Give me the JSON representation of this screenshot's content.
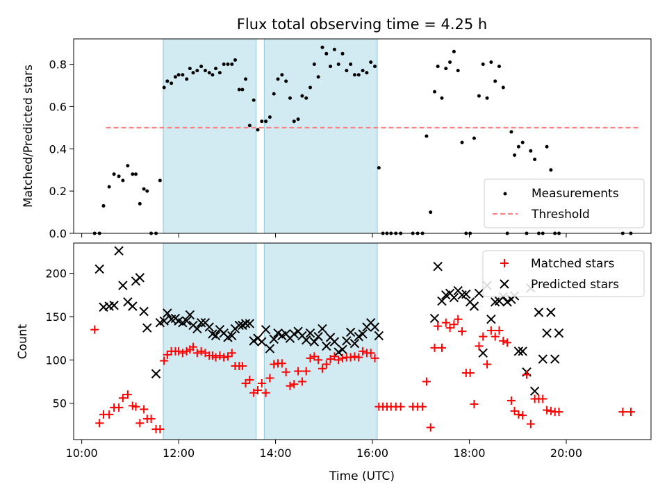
{
  "title": "Flux total observing time = 4.25 h",
  "colors": {
    "measurements": "#000000",
    "threshold": "#ff7f7f",
    "matched": "#ff0000",
    "predicted": "#000000",
    "shade": "#add8e6"
  },
  "chart_data": [
    {
      "type": "scatter",
      "ylabel": "Matched/Predicted stars",
      "xlim": [
        "09:50",
        "21:45"
      ],
      "ylim": [
        0,
        0.92
      ],
      "yticks": [
        0.0,
        0.2,
        0.4,
        0.6,
        0.8
      ],
      "ytick_labels": [
        "0.0",
        "0.2",
        "0.4",
        "0.6",
        "0.8"
      ],
      "legend": {
        "position": "lower right",
        "entries": [
          "Measurements",
          "Threshold"
        ]
      },
      "threshold": {
        "name": "Threshold",
        "value": 0.5,
        "x_range": [
          "10:30",
          "21:30"
        ]
      },
      "shaded_intervals": [
        [
          "11:41",
          "13:36"
        ],
        [
          "13:46",
          "16:06"
        ]
      ],
      "series": [
        {
          "name": "Measurements",
          "x": [
            "10:16",
            "10:22",
            "10:27",
            "10:34",
            "10:40",
            "10:46",
            "10:51",
            "10:57",
            "11:03",
            "11:07",
            "11:12",
            "11:17",
            "11:21",
            "11:26",
            "11:32",
            "11:37",
            "11:42",
            "11:46",
            "11:51",
            "11:56",
            "12:00",
            "12:05",
            "12:10",
            "12:14",
            "12:18",
            "12:23",
            "12:28",
            "12:33",
            "12:38",
            "12:42",
            "12:46",
            "12:51",
            "12:56",
            "13:01",
            "13:06",
            "13:10",
            "13:15",
            "13:19",
            "13:23",
            "13:28",
            "13:33",
            "13:38",
            "13:43",
            "13:48",
            "13:53",
            "13:58",
            "14:03",
            "14:08",
            "14:13",
            "14:18",
            "14:23",
            "14:28",
            "14:33",
            "14:38",
            "14:43",
            "14:48",
            "14:53",
            "14:58",
            "15:03",
            "15:08",
            "15:13",
            "15:18",
            "15:23",
            "15:28",
            "15:33",
            "15:38",
            "15:43",
            "15:48",
            "15:53",
            "15:58",
            "16:03",
            "16:08",
            "16:13",
            "16:18",
            "16:23",
            "16:29",
            "16:35",
            "16:50",
            "16:56",
            "17:02",
            "17:07",
            "17:12",
            "17:17",
            "17:21",
            "17:26",
            "17:31",
            "17:36",
            "17:41",
            "17:46",
            "17:51",
            "17:56",
            "18:01",
            "18:06",
            "18:12",
            "18:17",
            "18:22",
            "18:27",
            "18:32",
            "18:37",
            "18:42",
            "18:47",
            "18:52",
            "18:56",
            "19:01",
            "19:06",
            "19:11",
            "19:16",
            "19:21",
            "19:26",
            "19:31",
            "19:36",
            "19:41",
            "19:46",
            "19:51",
            "21:10",
            "21:20"
          ],
          "y": [
            0.0,
            0.0,
            0.13,
            0.22,
            0.28,
            0.27,
            0.25,
            0.32,
            0.28,
            0.28,
            0.14,
            0.21,
            0.2,
            0.0,
            0.0,
            0.25,
            0.69,
            0.72,
            0.71,
            0.74,
            0.75,
            0.75,
            0.73,
            0.78,
            0.76,
            0.77,
            0.79,
            0.77,
            0.76,
            0.75,
            0.78,
            0.76,
            0.8,
            0.8,
            0.8,
            0.82,
            0.68,
            0.68,
            0.73,
            0.51,
            0.63,
            0.49,
            0.53,
            0.53,
            0.55,
            0.66,
            0.73,
            0.75,
            0.72,
            0.64,
            0.53,
            0.54,
            0.65,
            0.64,
            0.69,
            0.8,
            0.74,
            0.88,
            0.85,
            0.79,
            0.87,
            0.8,
            0.85,
            0.77,
            0.8,
            0.75,
            0.75,
            0.77,
            0.76,
            0.81,
            0.79,
            0.31,
            0.0,
            0.0,
            0.0,
            0.0,
            0.0,
            0.0,
            0.0,
            0.0,
            0.46,
            0.1,
            0.67,
            0.79,
            0.64,
            0.78,
            0.81,
            0.86,
            0.77,
            0.43,
            0.0,
            0.0,
            0.45,
            0.65,
            0.8,
            0.64,
            0.81,
            0.72,
            0.79,
            0.69,
            0.0,
            0.48,
            0.37,
            0.41,
            0.43,
            0.0,
            0.39,
            0.35,
            0.0,
            0.0,
            0.41,
            0.3,
            0.0,
            0.0,
            0.0,
            0.0
          ]
        }
      ]
    },
    {
      "type": "scatter",
      "xlabel": "Time (UTC)",
      "ylabel": "Count",
      "xlim": [
        "09:50",
        "21:45"
      ],
      "ylim": [
        8,
        235
      ],
      "yticks": [
        50,
        100,
        150,
        200
      ],
      "ytick_labels": [
        "50",
        "100",
        "150",
        "200"
      ],
      "xticks": [
        "10:00",
        "12:00",
        "14:00",
        "16:00",
        "18:00",
        "20:00"
      ],
      "legend": {
        "position": "upper right",
        "entries": [
          "Matched stars",
          "Predicted stars"
        ]
      },
      "shaded_intervals": [
        [
          "11:41",
          "13:36"
        ],
        [
          "13:46",
          "16:06"
        ]
      ],
      "series": [
        {
          "name": "Matched stars",
          "x": [
            "10:16",
            "10:22",
            "10:27",
            "10:34",
            "10:40",
            "10:46",
            "10:51",
            "10:57",
            "11:03",
            "11:07",
            "11:12",
            "11:17",
            "11:21",
            "11:26",
            "11:32",
            "11:37",
            "11:42",
            "11:46",
            "11:51",
            "11:56",
            "12:00",
            "12:05",
            "12:10",
            "12:14",
            "12:18",
            "12:23",
            "12:28",
            "12:33",
            "12:38",
            "12:42",
            "12:46",
            "12:51",
            "12:56",
            "13:01",
            "13:06",
            "13:10",
            "13:15",
            "13:19",
            "13:23",
            "13:28",
            "13:33",
            "13:38",
            "13:43",
            "13:48",
            "13:53",
            "13:58",
            "14:03",
            "14:08",
            "14:13",
            "14:18",
            "14:23",
            "14:28",
            "14:33",
            "14:38",
            "14:43",
            "14:48",
            "14:53",
            "14:58",
            "15:03",
            "15:08",
            "15:13",
            "15:18",
            "15:23",
            "15:28",
            "15:33",
            "15:38",
            "15:43",
            "15:48",
            "15:53",
            "15:58",
            "16:03",
            "16:08",
            "16:13",
            "16:18",
            "16:23",
            "16:29",
            "16:35",
            "16:50",
            "16:56",
            "17:02",
            "17:07",
            "17:12",
            "17:17",
            "17:21",
            "17:26",
            "17:31",
            "17:36",
            "17:41",
            "17:46",
            "17:51",
            "17:56",
            "18:01",
            "18:06",
            "18:12",
            "18:17",
            "18:22",
            "18:27",
            "18:32",
            "18:37",
            "18:42",
            "18:47",
            "18:52",
            "18:56",
            "19:01",
            "19:06",
            "19:11",
            "19:16",
            "19:21",
            "19:26",
            "19:31",
            "19:36",
            "19:41",
            "19:46",
            "19:51",
            "21:10",
            "21:20"
          ],
          "y": [
            135,
            27,
            37,
            37,
            45,
            45,
            56,
            60,
            47,
            46,
            27,
            43,
            32,
            32,
            20,
            20,
            99,
            106,
            110,
            110,
            110,
            108,
            110,
            112,
            115,
            108,
            110,
            108,
            105,
            105,
            103,
            105,
            103,
            104,
            108,
            93,
            93,
            93,
            73,
            77,
            62,
            65,
            73,
            62,
            79,
            95,
            96,
            96,
            86,
            70,
            72,
            87,
            75,
            87,
            102,
            104,
            100,
            90,
            95,
            101,
            104,
            100,
            102,
            103,
            103,
            104,
            103,
            110,
            108,
            108,
            102,
            46,
            46,
            46,
            46,
            46,
            46,
            46,
            46,
            46,
            75,
            22,
            114,
            139,
            114,
            143,
            137,
            141,
            147,
            133,
            85,
            85,
            49,
            116,
            127,
            95,
            134,
            127,
            134,
            122,
            120,
            53,
            41,
            37,
            36,
            83,
            26,
            55,
            55,
            55,
            42,
            41,
            40,
            40,
            40,
            40
          ]
        },
        {
          "name": "Predicted stars",
          "x": [
            "10:22",
            "10:27",
            "10:34",
            "10:40",
            "10:46",
            "10:51",
            "10:57",
            "11:03",
            "11:07",
            "11:12",
            "11:17",
            "11:21",
            "11:32",
            "11:37",
            "11:42",
            "11:46",
            "11:51",
            "11:56",
            "12:00",
            "12:05",
            "12:10",
            "12:14",
            "12:18",
            "12:23",
            "12:28",
            "12:33",
            "12:38",
            "12:42",
            "12:46",
            "12:51",
            "12:56",
            "13:01",
            "13:06",
            "13:10",
            "13:15",
            "13:19",
            "13:23",
            "13:28",
            "13:33",
            "13:38",
            "13:43",
            "13:48",
            "13:53",
            "13:58",
            "14:03",
            "14:08",
            "14:13",
            "14:18",
            "14:23",
            "14:28",
            "14:33",
            "14:38",
            "14:43",
            "14:48",
            "14:53",
            "14:58",
            "15:03",
            "15:08",
            "15:13",
            "15:18",
            "15:23",
            "15:28",
            "15:33",
            "15:38",
            "15:43",
            "15:48",
            "15:53",
            "15:58",
            "16:03",
            "16:08",
            "17:17",
            "17:21",
            "17:26",
            "17:31",
            "17:36",
            "17:41",
            "17:46",
            "17:51",
            "17:56",
            "18:01",
            "18:06",
            "18:12",
            "18:17",
            "18:22",
            "18:27",
            "18:32",
            "18:37",
            "18:42",
            "18:47",
            "18:52",
            "18:56",
            "19:01",
            "19:06",
            "19:11",
            "19:16",
            "19:21",
            "19:26",
            "19:31",
            "19:36",
            "19:41",
            "19:46",
            "19:51"
          ],
          "y": [
            205,
            161,
            162,
            163,
            226,
            186,
            167,
            162,
            191,
            195,
            156,
            137,
            84,
            143,
            145,
            154,
            147,
            148,
            145,
            143,
            145,
            152,
            140,
            136,
            143,
            143,
            138,
            130,
            128,
            135,
            131,
            126,
            128,
            136,
            140,
            140,
            142,
            142,
            122,
            125,
            121,
            135,
            113,
            124,
            131,
            128,
            130,
            125,
            130,
            133,
            128,
            123,
            131,
            121,
            127,
            136,
            116,
            126,
            121,
            109,
            112,
            122,
            132,
            119,
            127,
            130,
            138,
            143,
            138,
            128,
            148,
            208,
            168,
            175,
            177,
            172,
            180,
            175,
            176,
            167,
            162,
            177,
            108,
            186,
            147,
            167,
            168,
            173,
            167,
            170,
            174,
            110,
            110,
            86,
            183,
            64,
            155,
            101,
            131,
            155,
            101,
            131
          ]
        }
      ]
    }
  ]
}
